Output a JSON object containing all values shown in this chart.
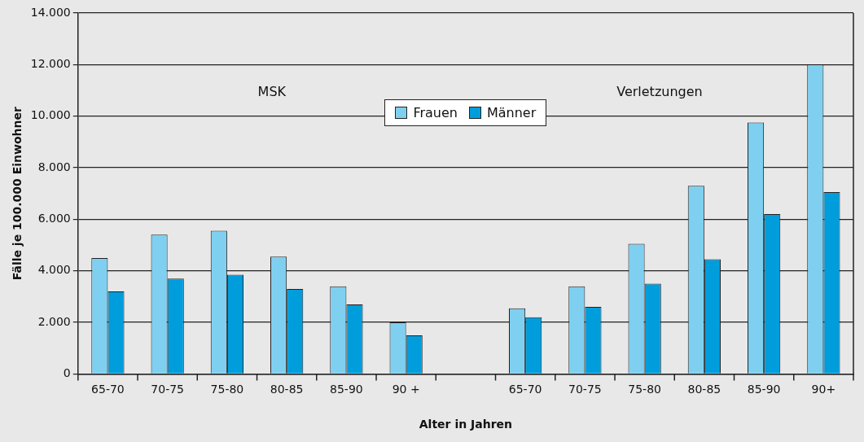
{
  "chart_data": {
    "type": "bar",
    "xlabel": "Alter in Jahren",
    "ylabel": "Fälle je 100.000 Einwohner",
    "categories": [
      "65-70",
      "70-75",
      "75-80",
      "80-85",
      "85-90",
      "90 +",
      null,
      "65-70",
      "70-75",
      "75-80",
      "80-85",
      "85-90",
      "90+"
    ],
    "series": [
      {
        "name": "Frauen",
        "color": "#7fd0f0",
        "values": [
          4500,
          5400,
          5550,
          4550,
          3400,
          2000,
          null,
          2550,
          3400,
          5050,
          7300,
          9750,
          12000
        ]
      },
      {
        "name": "Männer",
        "color": "#009ddd",
        "values": [
          3200,
          3700,
          3850,
          3300,
          2700,
          1500,
          null,
          2200,
          2600,
          3500,
          4450,
          6200,
          7050
        ]
      }
    ],
    "ylim": [
      0,
      14000
    ],
    "yticks": [
      {
        "value": 0,
        "label": "0"
      },
      {
        "value": 2000,
        "label": "2.000"
      },
      {
        "value": 4000,
        "label": "4.000"
      },
      {
        "value": 6000,
        "label": "6.000"
      },
      {
        "value": 8000,
        "label": "8.000"
      },
      {
        "value": 10000,
        "label": "10.000"
      },
      {
        "value": 12000,
        "label": "12.000"
      },
      {
        "value": 14000,
        "label": "14.000"
      }
    ],
    "grid": "y",
    "legend": "top",
    "annotations": [
      "MSK",
      "Verletzungen"
    ]
  }
}
